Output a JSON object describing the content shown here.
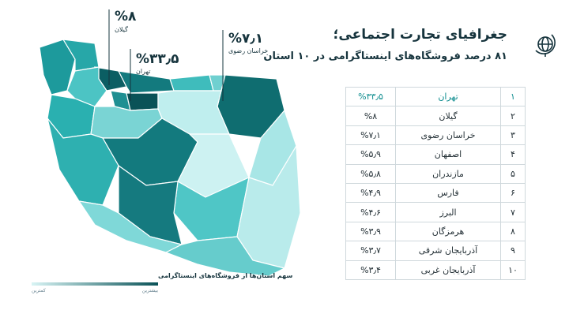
{
  "title": "جغرافیای تجارت اجتماعی؛",
  "subtitle": "۸۱ درصد فروشگاه‌های اینستاگرامی در ۱۰ استان",
  "callouts": [
    {
      "value": "%۸",
      "label": "گیلان"
    },
    {
      "value": "%۳۳٫۵",
      "label": "تهران"
    },
    {
      "value": "%۷٫۱",
      "label": "خراسان رضوی"
    }
  ],
  "legend": {
    "title": "سهم استان‌ها از فروشگاه‌های اینستاگرامی",
    "max": "بیشترین",
    "min": "کمترین"
  },
  "table": {
    "rows": [
      [
        "۱",
        "تهران",
        "%۳۳٫۵"
      ],
      [
        "۲",
        "گیلان",
        "%۸"
      ],
      [
        "۳",
        "خراسان رضوی",
        "%۷٫۱"
      ],
      [
        "۴",
        "اصفهان",
        "%۵٫۹"
      ],
      [
        "۵",
        "مازندران",
        "%۵٫۸"
      ],
      [
        "۶",
        "فارس",
        "%۴٫۹"
      ],
      [
        "۷",
        "البرز",
        "%۴٫۶"
      ],
      [
        "۸",
        "هرمزگان",
        "%۳٫۹"
      ],
      [
        "۹",
        "آذربایجان شرقی",
        "%۳٫۷"
      ],
      [
        "۱۰",
        "آذربایجان غربی",
        "%۳٫۴"
      ]
    ]
  }
}
